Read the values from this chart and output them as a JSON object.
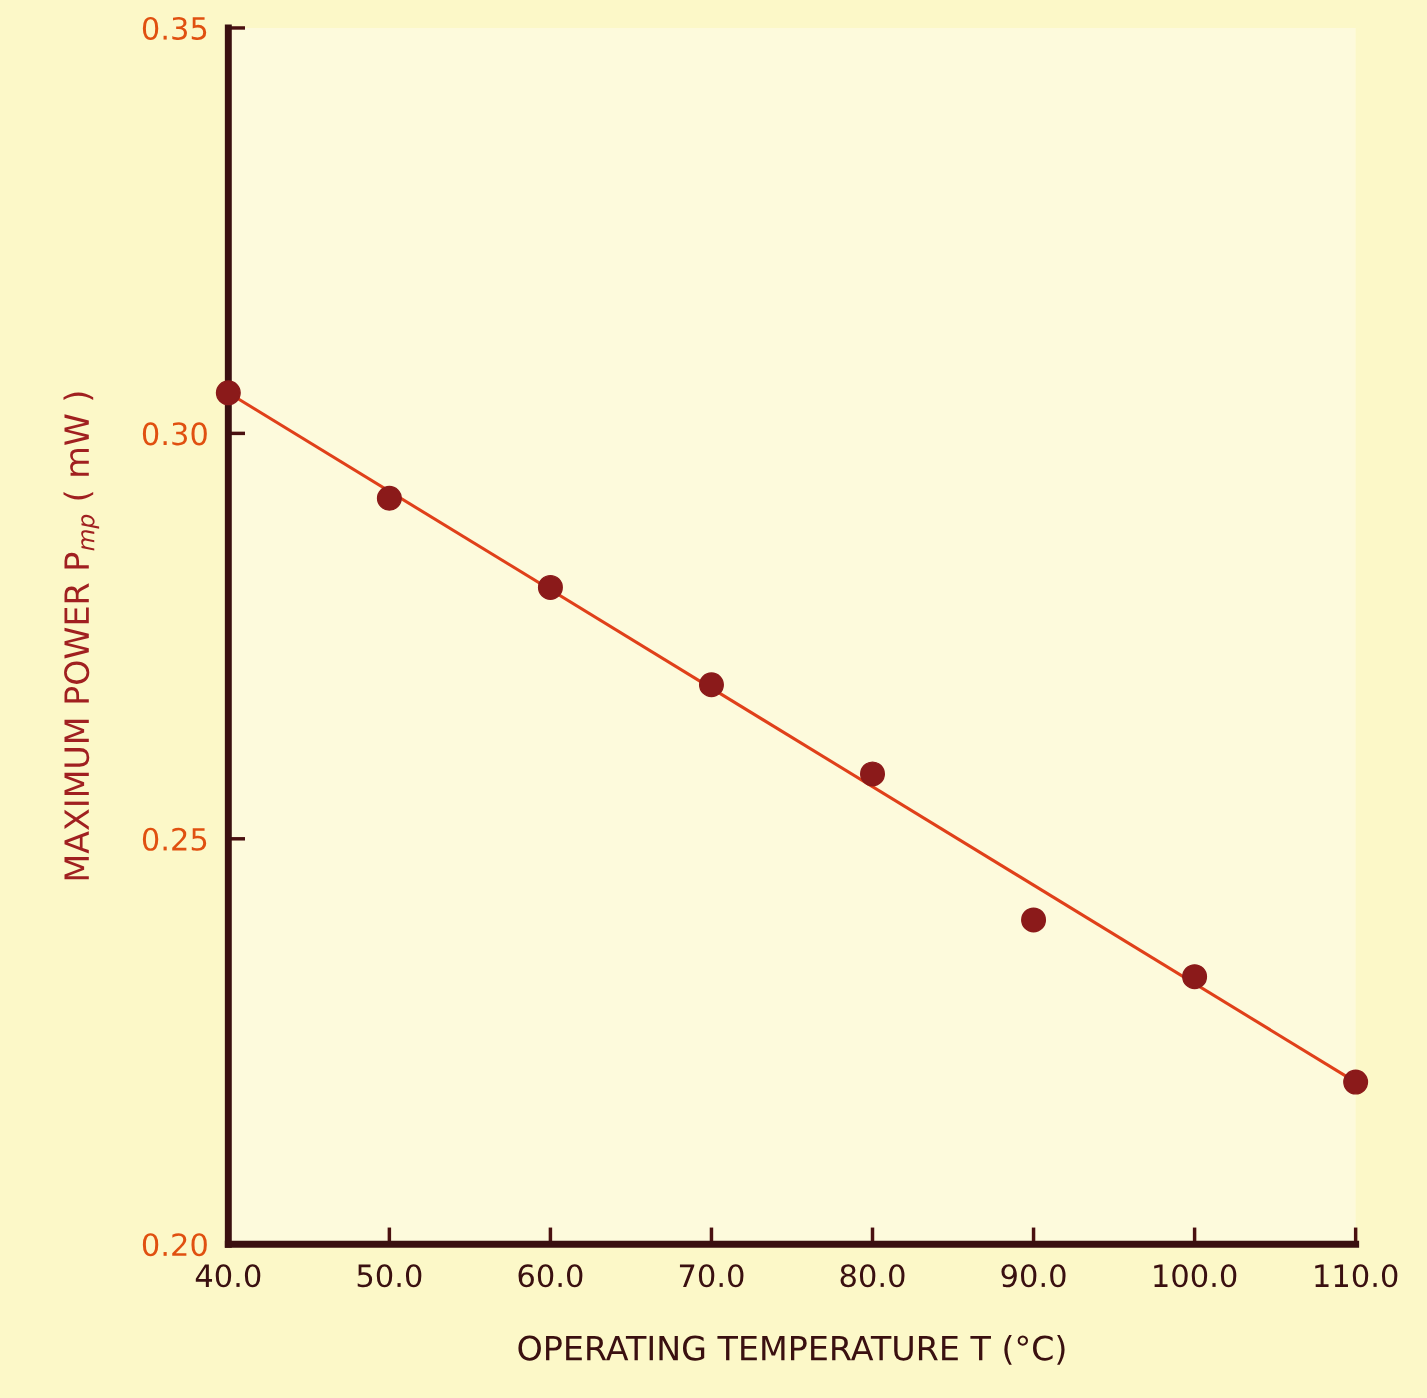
{
  "chart_data": {
    "type": "scatter",
    "xlabel": "OPERATING TEMPERATURE T (°C)",
    "ylabel": "MAXIMUM POWER P$_{mp}$ ( mW )",
    "series": [
      {
        "color": "#8b1a1a",
        "marker": "circle",
        "x": [
          40,
          50,
          60,
          70,
          80,
          90,
          100,
          110
        ],
        "values": [
          0.305,
          0.292,
          0.281,
          0.269,
          0.258,
          0.24,
          0.233,
          0.22
        ]
      },
      {
        "type": "line",
        "color": "#e0401a",
        "marker": "none",
        "line_style": "solid",
        "x": [
          40,
          110
        ],
        "values": [
          0.305,
          0.22
        ]
      }
    ],
    "xlim": [
      40,
      110
    ],
    "xticks": [
      {
        "value": 40,
        "label": "40.0"
      },
      {
        "value": 50,
        "label": "50.0"
      },
      {
        "value": 60,
        "label": "60.0"
      },
      {
        "value": 70,
        "label": "70.0"
      },
      {
        "value": 80,
        "label": "80.0"
      },
      {
        "value": 90,
        "label": "90.0"
      },
      {
        "value": 100,
        "label": "100.0"
      },
      {
        "value": 110,
        "label": "110.0"
      }
    ],
    "ylim": [
      0.2,
      0.35
    ],
    "yticks": [
      {
        "value": 0.2,
        "label": "0.20"
      },
      {
        "value": 0.25,
        "label": "0.25"
      },
      {
        "value": 0.3,
        "label": "0.30"
      },
      {
        "value": 0.35,
        "label": "0.35"
      }
    ],
    "grid": false,
    "legend": false
  }
}
